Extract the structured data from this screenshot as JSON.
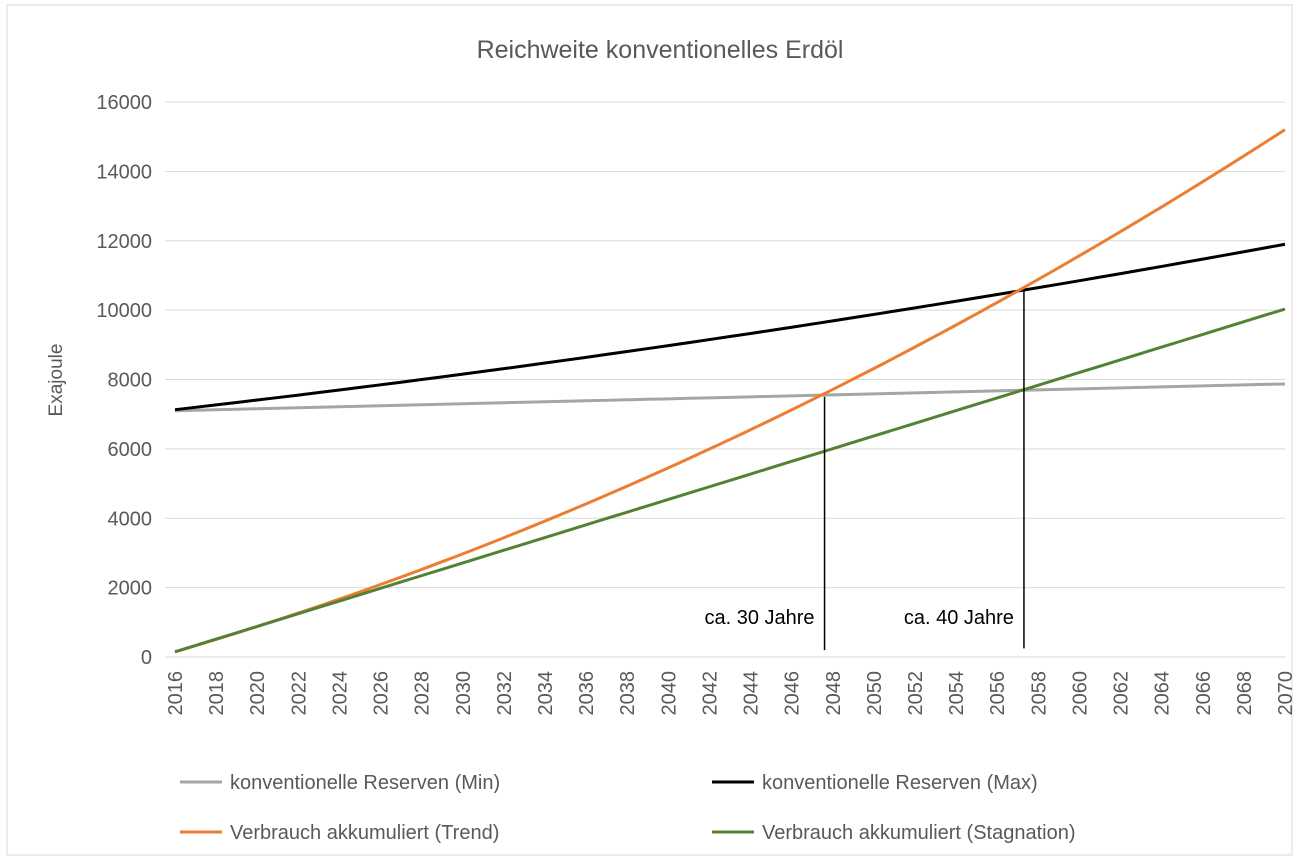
{
  "chart_data": {
    "type": "line",
    "title": "Reichweite konventionelles Erdöl",
    "ylabel": "Exajoule",
    "x": [
      2016,
      2017,
      2018,
      2019,
      2020,
      2021,
      2022,
      2023,
      2024,
      2025,
      2026,
      2027,
      2028,
      2029,
      2030,
      2031,
      2032,
      2033,
      2034,
      2035,
      2036,
      2037,
      2038,
      2039,
      2040,
      2041,
      2042,
      2043,
      2044,
      2045,
      2046,
      2047,
      2048,
      2049,
      2050,
      2051,
      2052,
      2053,
      2054,
      2055,
      2056,
      2057,
      2058,
      2059,
      2060,
      2061,
      2062,
      2063,
      2064,
      2065,
      2066,
      2067,
      2068,
      2069,
      2070
    ],
    "xlim": [
      2016,
      2070
    ],
    "xticks": [
      2016,
      2018,
      2020,
      2022,
      2024,
      2026,
      2028,
      2030,
      2032,
      2034,
      2036,
      2038,
      2040,
      2042,
      2044,
      2046,
      2048,
      2050,
      2052,
      2054,
      2056,
      2058,
      2060,
      2062,
      2064,
      2066,
      2068,
      2070
    ],
    "ylim": [
      0,
      16000
    ],
    "yticks": [
      0,
      2000,
      4000,
      6000,
      8000,
      10000,
      12000,
      14000,
      16000
    ],
    "grid": true,
    "legend": "bottom",
    "series": [
      {
        "name": "konventionelle Reserven (Min)",
        "color": "#a5a5a5",
        "values": [
          7100,
          7114,
          7129,
          7143,
          7157,
          7172,
          7186,
          7200,
          7214,
          7229,
          7243,
          7257,
          7272,
          7286,
          7300,
          7315,
          7329,
          7343,
          7357,
          7372,
          7386,
          7400,
          7415,
          7429,
          7443,
          7458,
          7472,
          7486,
          7500,
          7515,
          7529,
          7543,
          7558,
          7572,
          7586,
          7601,
          7615,
          7629,
          7643,
          7658,
          7672,
          7686,
          7701,
          7715,
          7729,
          7744,
          7758,
          7772,
          7786,
          7801,
          7815,
          7829,
          7844,
          7858,
          7872
        ]
      },
      {
        "name": "konventionelle Reserven (Max)",
        "color": "#000000",
        "values": [
          7130,
          7198,
          7267,
          7337,
          7408,
          7479,
          7551,
          7624,
          7697,
          7772,
          7847,
          7922,
          7999,
          8076,
          8155,
          8234,
          8313,
          8394,
          8475,
          8557,
          8639,
          8723,
          8807,
          8892,
          8977,
          9064,
          9151,
          9239,
          9327,
          9417,
          9507,
          9598,
          9690,
          9783,
          9876,
          9970,
          10065,
          10160,
          10256,
          10353,
          10451,
          10549,
          10648,
          10748,
          10849,
          10951,
          11053,
          11156,
          11260,
          11365,
          11470,
          11576,
          11683,
          11791,
          11899
        ]
      },
      {
        "name": "Verbrauch akkumuliert (Trend)",
        "color": "#ed7d31",
        "values": [
          150,
          327,
          507,
          691,
          880,
          1072,
          1268,
          1467,
          1671,
          1878,
          2090,
          2305,
          2524,
          2747,
          2974,
          3204,
          3439,
          3677,
          3919,
          4165,
          4415,
          4669,
          4926,
          5188,
          5453,
          5722,
          5995,
          6272,
          6552,
          6837,
          7125,
          7418,
          7714,
          8014,
          8317,
          8625,
          8937,
          9252,
          9571,
          9894,
          10221,
          10552,
          10887,
          11225,
          11568,
          11914,
          12264,
          12618,
          12975,
          13337,
          13703,
          14072,
          14445,
          14822,
          15203
        ]
      },
      {
        "name": "Verbrauch akkumuliert (Stagnation)",
        "color": "#548235",
        "values": [
          150,
          333,
          516,
          699,
          882,
          1065,
          1248,
          1431,
          1614,
          1797,
          1980,
          2163,
          2346,
          2529,
          2712,
          2895,
          3078,
          3261,
          3444,
          3627,
          3810,
          3993,
          4176,
          4359,
          4542,
          4725,
          4908,
          5091,
          5274,
          5457,
          5640,
          5823,
          6006,
          6189,
          6372,
          6555,
          6738,
          6921,
          7104,
          7287,
          7470,
          7653,
          7836,
          8019,
          8202,
          8385,
          8568,
          8751,
          8934,
          9117,
          9300,
          9483,
          9666,
          9849,
          10032
        ]
      }
    ],
    "annotations": [
      {
        "text": "ca. 30 Jahre",
        "x": 2047.6,
        "y_top": 7500,
        "y_bottom": 200
      },
      {
        "text": "ca. 40 Jahre",
        "x": 2057.3,
        "y_top": 10550,
        "y_bottom": 250
      }
    ]
  }
}
